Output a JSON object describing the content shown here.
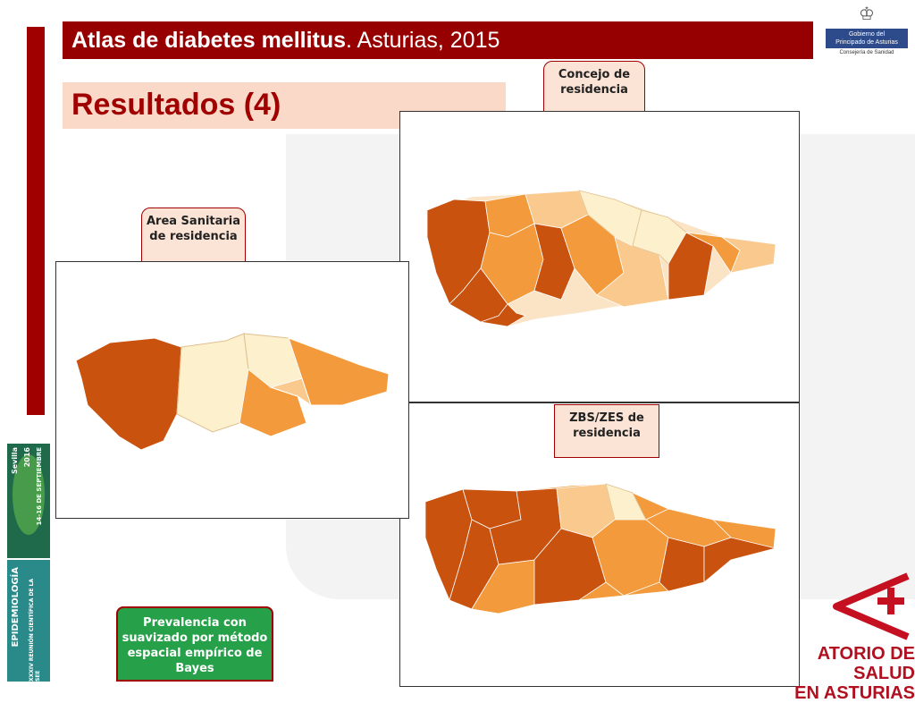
{
  "header": {
    "title_bold": "Atlas de diabetes mellitus",
    "title_rest": ". Asturias, 2015"
  },
  "subtitle": "Resultados (4)",
  "government": {
    "line1": "Gobierno del",
    "line2": "Principado de Asturias",
    "line3": "Consejería de Sanidad"
  },
  "callouts": {
    "concejo": "Concejo de residencia",
    "area": "Area Sanitaria de residencia",
    "zbs": "ZBS/ZES de residencia"
  },
  "note": "Prevalencia con suavizado por método espacial empírico de Bayes",
  "poster_top": {
    "line1": "Sevilla",
    "line2": "2016",
    "line3": "14-16 DE SEPTIEMBRE"
  },
  "poster_bottom": {
    "line1": "EPIDEMIOLOGÍA",
    "line2": "XXXIV REUNIÓN CIENTÍFICA DE LA SEE"
  },
  "observatorio": {
    "line1": "ATORIO DE SALUD",
    "line2": "EN ASTURIAS"
  },
  "colors": {
    "dark": "#c9520f",
    "mid": "#f29a3c",
    "light": "#f9c98e",
    "pale": "#fdf0cc",
    "brand": "#970000"
  }
}
